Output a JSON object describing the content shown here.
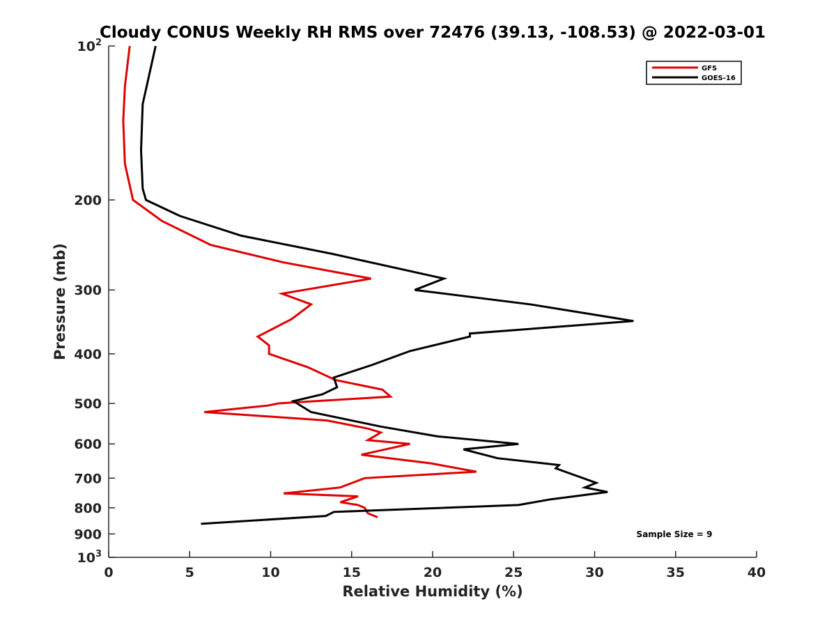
{
  "chart_data": {
    "type": "line",
    "title": "Cloudy CONUS Weekly RH RMS over 72476 (39.13, -108.53) @ 2022-03-01",
    "xlabel": "Relative Humidity (%)",
    "ylabel": "Pressure (mb)",
    "xlim": [
      0,
      40
    ],
    "ylim": [
      100,
      1000
    ],
    "y_scale": "log",
    "y_reversed": true,
    "grid": false,
    "legend_position": "top-right",
    "x_ticks": [
      0,
      5,
      10,
      15,
      20,
      25,
      30,
      35,
      40
    ],
    "x_tick_labels": [
      "0",
      "5",
      "10",
      "15",
      "20",
      "25",
      "30",
      "35",
      "40"
    ],
    "y_ticks": [
      100,
      200,
      300,
      400,
      500,
      600,
      700,
      800,
      900,
      1000
    ],
    "y_tick_labels": [
      "10^2",
      "200",
      "300",
      "400",
      "500",
      "600",
      "700",
      "800",
      "900",
      "10^3"
    ],
    "series": [
      {
        "name": "GFS",
        "color": "#e00000",
        "points": [
          [
            1.3,
            100
          ],
          [
            1.0,
            120
          ],
          [
            0.9,
            140
          ],
          [
            1.0,
            170
          ],
          [
            1.5,
            200
          ],
          [
            3.3,
            220
          ],
          [
            6.3,
            245
          ],
          [
            10.8,
            265
          ],
          [
            16.2,
            285
          ],
          [
            10.7,
            305
          ],
          [
            12.5,
            320
          ],
          [
            11.3,
            342
          ],
          [
            9.2,
            370
          ],
          [
            9.9,
            385
          ],
          [
            9.9,
            400
          ],
          [
            12.3,
            425
          ],
          [
            14.0,
            450
          ],
          [
            16.9,
            470
          ],
          [
            17.4,
            485
          ],
          [
            10.5,
            500
          ],
          [
            9.8,
            505
          ],
          [
            5.9,
            520
          ],
          [
            13.5,
            540
          ],
          [
            16.0,
            560
          ],
          [
            16.8,
            570
          ],
          [
            16.0,
            590
          ],
          [
            18.6,
            600
          ],
          [
            15.6,
            630
          ],
          [
            19.9,
            655
          ],
          [
            22.7,
            680
          ],
          [
            15.8,
            700
          ],
          [
            14.3,
            730
          ],
          [
            10.8,
            750
          ],
          [
            15.4,
            760
          ],
          [
            14.3,
            780
          ],
          [
            15.4,
            790
          ],
          [
            15.8,
            800
          ],
          [
            16.0,
            820
          ],
          [
            16.6,
            835
          ]
        ]
      },
      {
        "name": "GOES-16",
        "color": "#000000",
        "points": [
          [
            2.9,
            100
          ],
          [
            2.1,
            130
          ],
          [
            2.0,
            160
          ],
          [
            2.1,
            190
          ],
          [
            2.3,
            200
          ],
          [
            4.4,
            215
          ],
          [
            8.2,
            235
          ],
          [
            13.8,
            255
          ],
          [
            20.7,
            285
          ],
          [
            18.9,
            300
          ],
          [
            26.0,
            320
          ],
          [
            32.4,
            345
          ],
          [
            22.3,
            365
          ],
          [
            22.3,
            370
          ],
          [
            18.6,
            395
          ],
          [
            16.3,
            420
          ],
          [
            13.9,
            445
          ],
          [
            14.1,
            465
          ],
          [
            13.2,
            480
          ],
          [
            11.4,
            495
          ],
          [
            12.5,
            520
          ],
          [
            16.8,
            555
          ],
          [
            20.3,
            580
          ],
          [
            25.3,
            600
          ],
          [
            21.9,
            615
          ],
          [
            24.0,
            640
          ],
          [
            27.8,
            660
          ],
          [
            27.6,
            670
          ],
          [
            30.1,
            715
          ],
          [
            29.4,
            730
          ],
          [
            30.8,
            745
          ],
          [
            27.3,
            770
          ],
          [
            25.3,
            790
          ],
          [
            13.9,
            815
          ],
          [
            13.4,
            830
          ],
          [
            5.7,
            860
          ]
        ]
      }
    ],
    "annotation": "Sample Size = 9"
  }
}
